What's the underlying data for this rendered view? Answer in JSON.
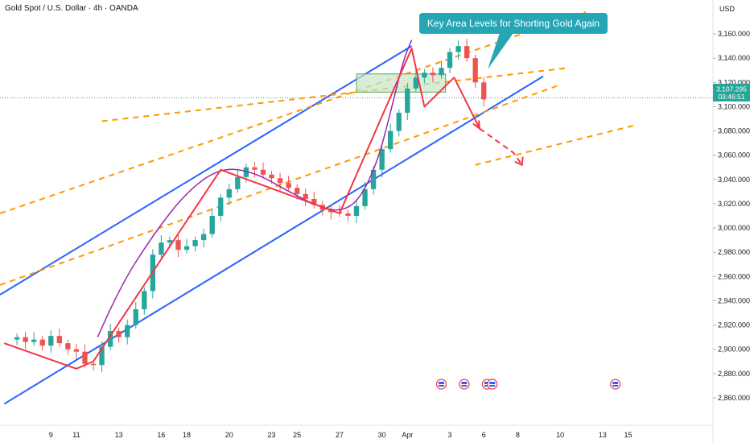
{
  "header": {
    "symbol_title": "Gold Spot / U.S. Dollar · 4h · OANDA",
    "currency": "USD"
  },
  "colors": {
    "up_candle": "#26a69a",
    "down_candle": "#ef5350",
    "channel_line": "#2962ff",
    "dashed_level": "#ff9800",
    "path_line": "#f23645",
    "curve": "#9c27b0",
    "zone_fill": "#c8e6c9",
    "zone_border": "#4caf50",
    "callout_bg": "#26a6b5",
    "price_tag": "#26a69a",
    "last_price_line": "#26a69a"
  },
  "annotation": {
    "callout": "Key Area Levels for Shorting Gold Again"
  },
  "price_tag": {
    "price": "3,107.295",
    "countdown": "03:46:51"
  },
  "chart_data": {
    "type": "candlestick",
    "title": "Gold Spot / U.S. Dollar · 4h · OANDA",
    "ylabel": "USD",
    "ylim": [
      2848,
      3172
    ],
    "xlim": [
      -2,
      82
    ],
    "last_price": 3107.3,
    "y_ticks": [
      2860,
      2880,
      2900,
      2920,
      2940,
      2960,
      2980,
      3000,
      3020,
      3040,
      3060,
      3080,
      3100,
      3120,
      3140,
      3160
    ],
    "y_tick_labels": [
      "2,860.000",
      "2,880.000",
      "2,900.000",
      "2,920.000",
      "2,940.000",
      "2,960.000",
      "2,980.000",
      "3,000.000",
      "3,020.000",
      "3,040.000",
      "3,060.000",
      "3,080.000",
      "3,100.000",
      "3,120.000",
      "3,140.000",
      "3,160.000"
    ],
    "x_ticks": [
      {
        "label": "9",
        "x": 4
      },
      {
        "label": "11",
        "x": 7
      },
      {
        "label": "13",
        "x": 12
      },
      {
        "label": "16",
        "x": 17
      },
      {
        "label": "18",
        "x": 20
      },
      {
        "label": "20",
        "x": 25
      },
      {
        "label": "23",
        "x": 30
      },
      {
        "label": "25",
        "x": 33
      },
      {
        "label": "27",
        "x": 38
      },
      {
        "label": "30",
        "x": 43
      },
      {
        "label": "Apr",
        "x": 46
      },
      {
        "label": "3",
        "x": 51
      },
      {
        "label": "6",
        "x": 55
      },
      {
        "label": "8",
        "x": 59
      },
      {
        "label": "10",
        "x": 64
      },
      {
        "label": "13",
        "x": 69
      },
      {
        "label": "15",
        "x": 72
      }
    ],
    "close": [
      2910,
      2906,
      2908,
      2903,
      2911,
      2905,
      2900,
      2898,
      2888,
      2887,
      2902,
      2915,
      2910,
      2920,
      2933,
      2948,
      2978,
      2988,
      2990,
      2982,
      2985,
      2990,
      2995,
      3010,
      3025,
      3032,
      3042,
      3050,
      3048,
      3044,
      3041,
      3037,
      3033,
      3028,
      3024,
      3019,
      3015,
      3013,
      3012,
      3010,
      3018,
      3032,
      3048,
      3065,
      3080,
      3095,
      3115,
      3124,
      3128,
      3126,
      3132,
      3145,
      3150,
      3140,
      3120,
      3106
    ],
    "channel": {
      "upper_pts": [
        [
          -2,
          2945
        ],
        [
          46.5,
          3150
        ]
      ],
      "lower_pts": [
        [
          -1.5,
          2855
        ],
        [
          62,
          3125
        ]
      ]
    },
    "dashed_levels": [
      {
        "pts": [
          [
            10,
            3088
          ],
          [
            65,
            3132
          ]
        ]
      },
      {
        "pts": [
          [
            -2,
            3012
          ],
          [
            67,
            3178
          ]
        ]
      },
      {
        "pts": [
          [
            -2,
            2953
          ],
          [
            64,
            3118
          ]
        ]
      },
      {
        "pts": [
          [
            54,
            3052
          ],
          [
            73,
            3085
          ]
        ]
      }
    ],
    "curve_pts": [
      [
        9.5,
        2910
      ],
      [
        12,
        2950
      ],
      [
        16,
        2994
      ],
      [
        20,
        3030
      ],
      [
        24,
        3050
      ],
      [
        28,
        3046
      ],
      [
        32,
        3030
      ],
      [
        36,
        3016
      ],
      [
        38.5,
        3014
      ],
      [
        40.5,
        3025
      ],
      [
        42.5,
        3055
      ],
      [
        44,
        3095
      ],
      [
        45.5,
        3138
      ],
      [
        46.5,
        3155
      ]
    ],
    "path_pts": [
      [
        -1.5,
        2905
      ],
      [
        7,
        2884
      ],
      [
        9,
        2890
      ],
      [
        24,
        3048
      ],
      [
        38,
        3012
      ],
      [
        46.5,
        3148
      ],
      [
        48,
        3100
      ],
      [
        51.5,
        3124
      ],
      [
        54.5,
        3082
      ]
    ],
    "projection_pts": [
      [
        54.5,
        3082
      ],
      [
        58.5,
        3062
      ],
      [
        59.5,
        3052
      ]
    ],
    "zone": {
      "x1": 40,
      "x2": 50.5,
      "y1": 3112,
      "y2": 3127
    },
    "event_markers_x": [
      50,
      52.7,
      55.4,
      56,
      70.5
    ]
  }
}
